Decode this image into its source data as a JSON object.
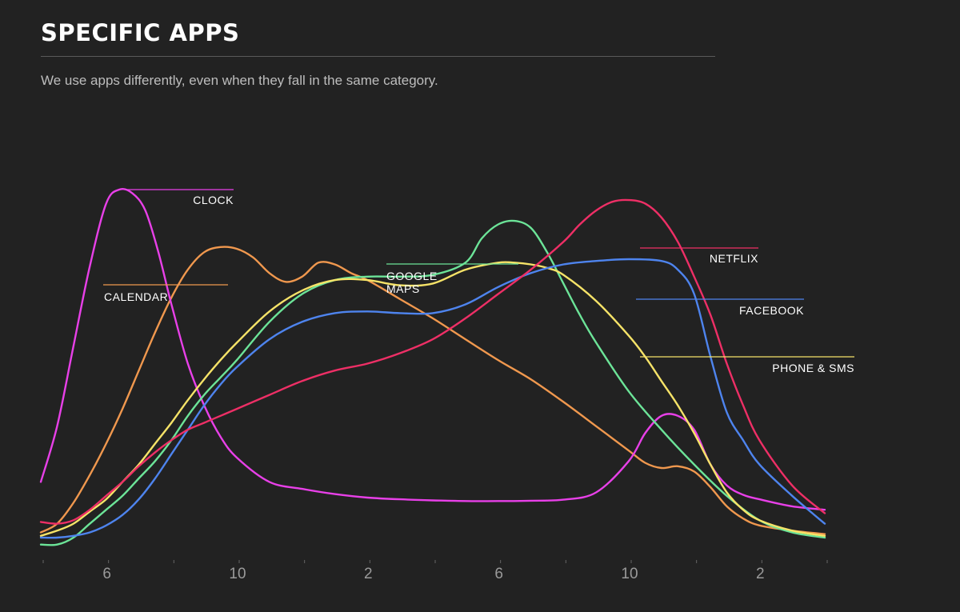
{
  "header": {
    "title": "SPECIFIC APPS",
    "subtitle": "We use apps differently, even when they fall in the same category."
  },
  "chart_data": {
    "type": "line",
    "title": "SPECIFIC APPS",
    "subtitle": "We use apps differently, even when they fall in the same category.",
    "xlabel": "",
    "ylabel": "",
    "x_unit": "hour of day (two-day cycle, starting at 4)",
    "xlim": [
      4,
      28
    ],
    "ylim": [
      0,
      100
    ],
    "x_ticks": [
      {
        "x": 6,
        "label": "6"
      },
      {
        "x": 10,
        "label": "10"
      },
      {
        "x": 14,
        "label": "2"
      },
      {
        "x": 18,
        "label": "6"
      },
      {
        "x": 22,
        "label": "10"
      },
      {
        "x": 26,
        "label": "2"
      }
    ],
    "grid": false,
    "legend": "direct labels",
    "series": [
      {
        "name": "CLOCK",
        "color": "#e840e8",
        "x": [
          4,
          4.5,
          5,
          5.5,
          6,
          6.4,
          6.8,
          7.2,
          7.6,
          8,
          8.5,
          9,
          9.5,
          10,
          11,
          12,
          13,
          14,
          15,
          16,
          17,
          18,
          19,
          20,
          21,
          22,
          22.5,
          23,
          23.5,
          24,
          24.5,
          25,
          25.5,
          26,
          27,
          28
        ],
        "y": [
          16,
          32,
          55,
          78,
          96,
          100,
          99,
          94,
          82,
          67,
          50,
          38,
          29,
          23,
          16,
          14,
          12.5,
          11.5,
          11,
          10.7,
          10.5,
          10.5,
          10.6,
          10.9,
          13,
          22,
          30,
          35,
          35,
          31,
          21,
          15,
          12.3,
          11,
          9,
          8
        ]
      },
      {
        "name": "CALENDAR",
        "color": "#f0984e",
        "x": [
          4,
          4.5,
          5,
          5.5,
          6,
          6.5,
          7,
          7.5,
          8,
          8.5,
          9,
          9.5,
          10,
          10.5,
          11,
          11.5,
          12,
          12.5,
          13,
          13.5,
          14,
          15,
          16,
          17,
          18,
          19,
          20,
          21,
          22,
          22.5,
          23,
          23.5,
          24,
          24.5,
          25,
          25.5,
          26,
          27,
          28
        ],
        "y": [
          1.5,
          4,
          10,
          18,
          27,
          37,
          48,
          59,
          69,
          77,
          82,
          83.5,
          83,
          80.5,
          76,
          73.5,
          75,
          79,
          78.5,
          76,
          74,
          68.5,
          63,
          57,
          51,
          45.5,
          39,
          32,
          25,
          21.5,
          20,
          20.5,
          19,
          14.5,
          9,
          5.5,
          3.5,
          2,
          1
        ]
      },
      {
        "name": "GOOGLE MAPS",
        "color": "#6ce498",
        "x": [
          4,
          4.5,
          5,
          5.5,
          6,
          6.5,
          7,
          7.5,
          8,
          8.5,
          9,
          9.5,
          10,
          11,
          12,
          13,
          14,
          15,
          16,
          17,
          17.5,
          18,
          18.5,
          19,
          19.5,
          20,
          20.5,
          21,
          22,
          23,
          24,
          25,
          26,
          27,
          28
        ],
        "y": [
          -2,
          -2,
          0,
          4,
          8,
          12,
          17,
          22,
          28,
          35,
          41,
          46,
          51,
          62,
          70,
          74,
          75,
          75,
          75.5,
          79,
          86,
          90,
          91,
          89,
          82,
          73,
          64,
          56,
          42,
          31,
          21,
          12,
          5,
          1.5,
          0
        ]
      },
      {
        "name": "PHONE & SMS",
        "color": "#f6e368",
        "x": [
          4,
          4.5,
          5,
          5.5,
          6,
          6.5,
          7,
          7.5,
          8,
          8.5,
          9,
          9.5,
          10,
          11,
          12,
          13,
          14,
          15,
          16,
          17,
          18,
          18.5,
          19,
          19.5,
          20,
          21,
          22,
          22.5,
          23,
          23.5,
          24,
          24.5,
          25,
          25.5,
          26,
          27,
          28
        ],
        "y": [
          0.5,
          2,
          4,
          7.5,
          11,
          16,
          21,
          27,
          33,
          39.5,
          45.5,
          51,
          56,
          65,
          71,
          74,
          74,
          72.5,
          73,
          77,
          79,
          79,
          78.5,
          77.5,
          75.5,
          68,
          58,
          52,
          45,
          38,
          30,
          21,
          13,
          8,
          5,
          2,
          0.5
        ]
      },
      {
        "name": "FACEBOOK",
        "color": "#4e84ee",
        "x": [
          4,
          4.5,
          5,
          5.5,
          6,
          6.5,
          7,
          7.5,
          8,
          8.5,
          9,
          9.5,
          10,
          11,
          12,
          13,
          14,
          15,
          16,
          17,
          18,
          19,
          20,
          21,
          22,
          23,
          23.5,
          24,
          24.5,
          25,
          25.5,
          26,
          27,
          28
        ],
        "y": [
          0,
          0,
          0.5,
          1.5,
          3.5,
          6.5,
          11,
          17,
          24,
          31,
          38,
          44,
          49,
          57,
          62,
          64.5,
          65,
          64.5,
          64.5,
          67,
          72,
          76,
          78.5,
          79.5,
          80,
          79.5,
          77,
          70,
          52,
          36,
          28,
          21,
          12,
          4
        ]
      },
      {
        "name": "NETFLIX",
        "color": "#ee2f66",
        "x": [
          4,
          4.5,
          5,
          5.5,
          6,
          6.5,
          7,
          7.5,
          8,
          8.5,
          9,
          9.5,
          10,
          11,
          12,
          13,
          14,
          15,
          16,
          17,
          18,
          19,
          20,
          20.5,
          21,
          21.5,
          22,
          22.5,
          23,
          23.5,
          24,
          24.5,
          25,
          25.5,
          26,
          27,
          28
        ],
        "y": [
          4.5,
          4,
          5,
          8,
          12,
          16,
          20.5,
          24.5,
          28,
          31,
          33,
          35,
          37,
          41,
          45,
          48,
          50,
          53,
          57,
          63,
          70,
          77,
          85,
          90,
          94,
          96.5,
          97,
          96,
          92,
          85,
          75,
          64,
          50,
          38,
          28,
          15,
          7
        ]
      }
    ],
    "labels": [
      {
        "series": "CLOCK",
        "text": "CLOCK"
      },
      {
        "series": "CALENDAR",
        "text": "CALENDAR"
      },
      {
        "series": "GOOGLE MAPS",
        "lines": [
          "GOOGLE",
          "MAPS"
        ]
      },
      {
        "series": "NETFLIX",
        "text": "NETFLIX"
      },
      {
        "series": "FACEBOOK",
        "text": "FACEBOOK"
      },
      {
        "series": "PHONE & SMS",
        "text": "PHONE & SMS"
      }
    ]
  }
}
